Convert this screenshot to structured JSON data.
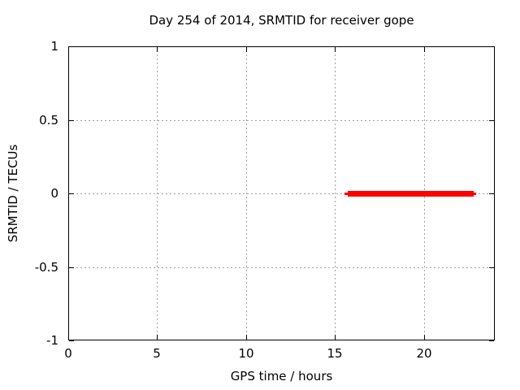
{
  "window": {
    "background_color": "#ffffff",
    "text_color": "#000000"
  },
  "chart_data": {
    "type": "line",
    "title": "Day 254 of 2014, SRMTID for receiver gope",
    "xlabel": "GPS time / hours",
    "ylabel": "SRMTID / TECUs",
    "xlim": [
      0,
      24
    ],
    "ylim": [
      -1,
      1
    ],
    "xticks": [
      0,
      5,
      10,
      15,
      20
    ],
    "xtick_labels": [
      "0",
      "5",
      "10",
      "15",
      "20"
    ],
    "yticks": [
      1,
      0.5,
      0,
      -0.5,
      -1
    ],
    "ytick_labels": [
      "1",
      "0.5",
      "0",
      "-0.5",
      "-1"
    ],
    "grid": true,
    "grid_style": "dashed",
    "grid_color": "#a0a0a0",
    "axis_color": "#000000",
    "legend_position": "none",
    "series": [
      {
        "name": "SRMTID",
        "color": "#ff0000",
        "description": "near-constant value of 0 TECUs between ~15.6 h and ~23.0 h GPS time",
        "y": 0,
        "x_start": 15.55,
        "x_end": 22.95,
        "segments": [
          {
            "x1": 15.55,
            "x2": 15.73,
            "thickness_px": 3
          },
          {
            "x1": 15.73,
            "x2": 22.81,
            "thickness_px": 7
          },
          {
            "x1": 22.81,
            "x2": 22.95,
            "thickness_px": 3
          }
        ]
      }
    ]
  }
}
